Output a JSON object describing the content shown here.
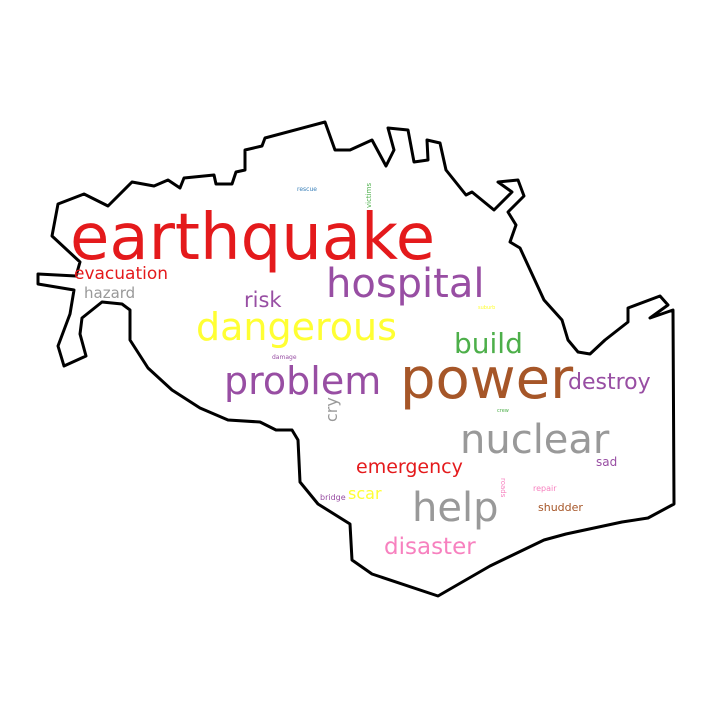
{
  "words": [
    {
      "id": "earthquake",
      "text": "earthquake",
      "color": "#e41a1c"
    },
    {
      "id": "power",
      "text": "power",
      "color": "#a65628"
    },
    {
      "id": "hospital",
      "text": "hospital",
      "color": "#984ea3"
    },
    {
      "id": "dangerous",
      "text": "dangerous",
      "color": "#ffff33"
    },
    {
      "id": "problem",
      "text": "problem",
      "color": "#984ea3"
    },
    {
      "id": "nuclear",
      "text": "nuclear",
      "color": "#999999"
    },
    {
      "id": "help",
      "text": "help",
      "color": "#999999"
    },
    {
      "id": "build",
      "text": "build",
      "color": "#4daf4a"
    },
    {
      "id": "destroy",
      "text": "destroy",
      "color": "#984ea3"
    },
    {
      "id": "disaster",
      "text": "disaster",
      "color": "#f781bf"
    },
    {
      "id": "emergency",
      "text": "emergency",
      "color": "#e41a1c"
    },
    {
      "id": "evacuation",
      "text": "evacuation",
      "color": "#e41a1c"
    },
    {
      "id": "risk",
      "text": "risk",
      "color": "#984ea3"
    },
    {
      "id": "hazard",
      "text": "hazard",
      "color": "#999999"
    },
    {
      "id": "scar",
      "text": "scar",
      "color": "#ffff33"
    },
    {
      "id": "cry",
      "text": "cry",
      "color": "#999999"
    },
    {
      "id": "sad",
      "text": "sad",
      "color": "#984ea3"
    },
    {
      "id": "shudder",
      "text": "shudder",
      "color": "#a65628"
    },
    {
      "id": "repair",
      "text": "repair",
      "color": "#f781bf"
    },
    {
      "id": "bridge",
      "text": "bridge",
      "color": "#984ea3"
    },
    {
      "id": "roads",
      "text": "roads",
      "color": "#f781bf"
    },
    {
      "id": "rescue",
      "text": "rescue",
      "color": "#377eb8"
    },
    {
      "id": "victims",
      "text": "victims",
      "color": "#4daf4a"
    },
    {
      "id": "damage",
      "text": "damage",
      "color": "#984ea3"
    },
    {
      "id": "crew",
      "text": "crew",
      "color": "#4daf4a"
    },
    {
      "id": "suburb",
      "text": "suburb",
      "color": "#ffff33"
    }
  ]
}
